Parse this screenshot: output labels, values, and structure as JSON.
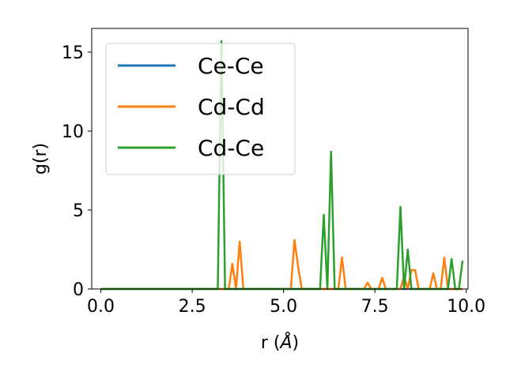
{
  "chart_data": {
    "type": "line",
    "xlabel_main": "r (",
    "xlabel_unit": "Å",
    "xlabel_close": ")",
    "ylabel": "g(r)",
    "xlim": [
      -0.25,
      10.05
    ],
    "ylim": [
      0,
      16.5
    ],
    "xticks": [
      0.0,
      2.5,
      5.0,
      7.5,
      10.0
    ],
    "xtick_labels": [
      "0.0",
      "2.5",
      "5.0",
      "7.5",
      "10.0"
    ],
    "yticks": [
      0,
      5,
      10,
      15
    ],
    "ytick_labels": [
      "0",
      "5",
      "10",
      "15"
    ],
    "grid": false,
    "legend_position": "top-left",
    "series": [
      {
        "name": "Ce-Ce",
        "color": "#1f77b4",
        "x": [
          0.0,
          9.9
        ],
        "y": [
          0,
          0
        ]
      },
      {
        "name": "Cd-Cd",
        "color": "#ff7f0e",
        "x": [
          0.0,
          3.5,
          3.6,
          3.7,
          3.8,
          3.9,
          4.0,
          5.2,
          5.3,
          5.4,
          5.5,
          6.5,
          6.6,
          6.7,
          7.2,
          7.3,
          7.4,
          7.6,
          7.7,
          7.8,
          8.2,
          8.3,
          8.4,
          8.5,
          8.6,
          8.7,
          9.0,
          9.1,
          9.2,
          9.3,
          9.4,
          9.5,
          9.6,
          9.9
        ],
        "y": [
          0,
          0,
          1.6,
          0,
          3.0,
          0,
          0,
          0,
          3.1,
          1.4,
          0,
          0,
          2.0,
          0,
          0,
          0.4,
          0,
          0,
          0.7,
          0,
          0,
          0.8,
          0,
          1.2,
          1.2,
          0,
          0,
          1.0,
          0,
          0,
          2.0,
          0,
          0,
          0
        ]
      },
      {
        "name": "Cd-Ce",
        "color": "#2ca02c",
        "x": [
          0.0,
          3.2,
          3.3,
          3.4,
          6.0,
          6.1,
          6.2,
          6.3,
          6.4,
          8.1,
          8.2,
          8.3,
          8.4,
          8.5,
          9.5,
          9.6,
          9.7,
          9.8,
          9.9
        ],
        "y": [
          0,
          0,
          15.7,
          0,
          0,
          4.7,
          0,
          8.7,
          0,
          0,
          5.2,
          0,
          2.5,
          0,
          0,
          1.9,
          0,
          0,
          1.8
        ]
      }
    ]
  }
}
